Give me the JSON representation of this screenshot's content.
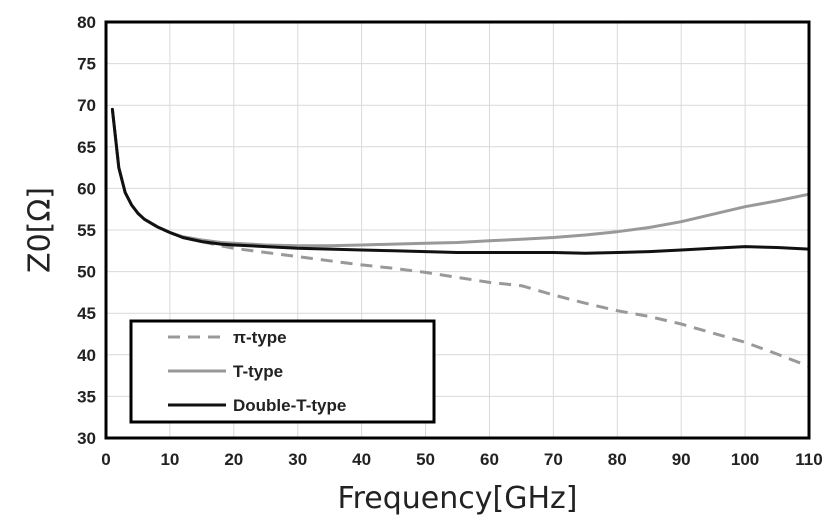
{
  "chart_data": {
    "type": "line",
    "xlabel": "Frequency[GHz]",
    "ylabel": "Z0[Ω]",
    "xlim": [
      0,
      110
    ],
    "ylim": [
      30,
      80
    ],
    "x_ticks": [
      "0",
      "10",
      "20",
      "30",
      "40",
      "50",
      "60",
      "70",
      "80",
      "90",
      "100",
      "110"
    ],
    "y_ticks": [
      "80",
      "75",
      "70",
      "65",
      "60",
      "55",
      "50",
      "45",
      "40",
      "35",
      "30"
    ],
    "grid": true,
    "legend_position": "bottom-left",
    "series": [
      {
        "name": "π-type",
        "color": "#999999",
        "line_style": "dashed",
        "x": [
          1,
          1.5,
          2,
          3,
          4,
          5,
          6,
          8,
          10,
          12,
          15,
          18,
          20,
          25,
          30,
          35,
          40,
          45,
          50,
          55,
          60,
          65,
          70,
          75,
          80,
          85,
          90,
          95,
          100,
          105,
          110
        ],
        "y": [
          69.5,
          66,
          62.5,
          59.5,
          58,
          57,
          56.3,
          55.4,
          54.7,
          54.1,
          53.6,
          53.1,
          52.8,
          52.3,
          51.8,
          51.3,
          50.8,
          50.4,
          49.9,
          49.3,
          48.7,
          48.3,
          47.2,
          46.2,
          45.3,
          44.6,
          43.7,
          42.6,
          41.5,
          40.1,
          38.6
        ]
      },
      {
        "name": "T-type",
        "color": "#999999",
        "line_style": "solid",
        "x": [
          1,
          1.5,
          2,
          3,
          4,
          5,
          6,
          8,
          10,
          12,
          15,
          18,
          20,
          25,
          30,
          35,
          40,
          45,
          50,
          55,
          60,
          65,
          70,
          75,
          80,
          85,
          90,
          95,
          100,
          105,
          110
        ],
        "y": [
          69.5,
          66,
          62.5,
          59.5,
          58,
          57,
          56.3,
          55.4,
          54.7,
          54.2,
          53.8,
          53.5,
          53.4,
          53.2,
          53.1,
          53.1,
          53.2,
          53.3,
          53.4,
          53.5,
          53.7,
          53.9,
          54.1,
          54.4,
          54.8,
          55.3,
          56,
          56.9,
          57.8,
          58.5,
          59.3
        ]
      },
      {
        "name": "Double-T-type",
        "color": "#111111",
        "line_style": "solid",
        "x": [
          1,
          1.5,
          2,
          3,
          4,
          5,
          6,
          8,
          10,
          12,
          15,
          18,
          20,
          25,
          30,
          35,
          40,
          45,
          50,
          55,
          60,
          65,
          70,
          75,
          80,
          85,
          90,
          95,
          100,
          105,
          110
        ],
        "y": [
          69.5,
          66,
          62.5,
          59.5,
          58,
          57,
          56.3,
          55.4,
          54.7,
          54.1,
          53.6,
          53.3,
          53.2,
          53,
          52.8,
          52.7,
          52.6,
          52.5,
          52.4,
          52.3,
          52.3,
          52.3,
          52.3,
          52.2,
          52.3,
          52.4,
          52.6,
          52.8,
          53,
          52.9,
          52.7
        ]
      }
    ]
  }
}
